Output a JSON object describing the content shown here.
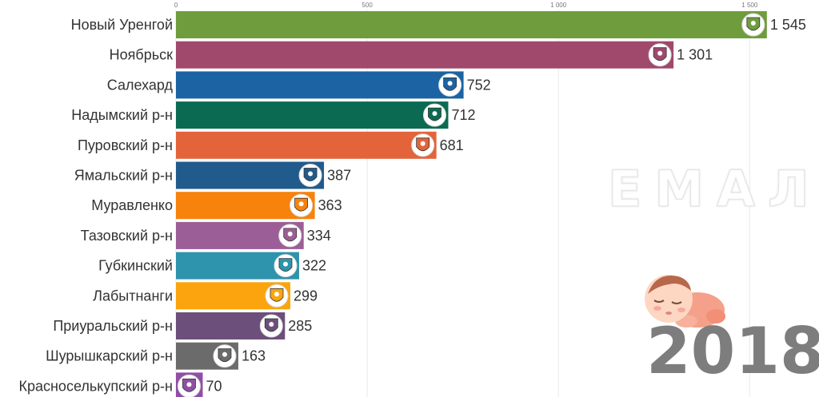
{
  "chart_data": {
    "type": "bar",
    "orientation": "horizontal",
    "title": "",
    "categories": [
      "Новый Уренгой",
      "Ноябрьск",
      "Салехард",
      "Надымский р-н",
      "Пуровский р-н",
      "Ямальский р-н",
      "Муравленко",
      "Тазовский р-н",
      "Губкинский",
      "Лабытнанги",
      "Приуральский р-н",
      "Шурышкарский р-н",
      "Красноселькупский р-н"
    ],
    "values": [
      1545,
      1301,
      752,
      712,
      681,
      387,
      363,
      334,
      322,
      299,
      285,
      163,
      70
    ],
    "value_labels": [
      "1 545",
      "1 301",
      "752",
      "712",
      "681",
      "387",
      "363",
      "334",
      "322",
      "299",
      "285",
      "163",
      "70"
    ],
    "colors": [
      "#6f9c3d",
      "#a0496d",
      "#1b63a3",
      "#0b6b52",
      "#e3643b",
      "#215b8c",
      "#f7820c",
      "#9c5e96",
      "#2e93ac",
      "#fba40d",
      "#6d4f7b",
      "#6b6b6b",
      "#904fa5"
    ],
    "emblem_icons": [
      "novy-urengoy-emblem-icon",
      "noyabrsk-emblem-icon",
      "salekhard-emblem-icon",
      "nadym-district-emblem-icon",
      "purovsky-district-emblem-icon",
      "yamalsky-district-emblem-icon",
      "muravlenko-emblem-icon",
      "tazovsky-district-emblem-icon",
      "gubkinsky-emblem-icon",
      "labytnangi-emblem-icon",
      "priuralsky-district-emblem-icon",
      "shuryshkarsky-district-emblem-icon",
      "krasnoselkupsky-district-emblem-icon"
    ],
    "xlim": [
      0,
      1560
    ],
    "x_ticks": [
      0,
      500,
      1000,
      1500
    ],
    "x_tick_labels": [
      "0",
      "500",
      "1 000",
      "1 500"
    ],
    "grid": true,
    "year_label": "2018",
    "watermark": "ЕМАЛ"
  }
}
